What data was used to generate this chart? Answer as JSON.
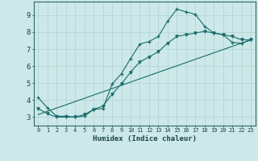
{
  "xlabel": "Humidex (Indice chaleur)",
  "bg_color": "#cce8e8",
  "grid_color": "#b8d8d8",
  "line_color": "#1a6b6b",
  "xlim": [
    -0.5,
    23.5
  ],
  "ylim": [
    2.5,
    9.8
  ],
  "xticks": [
    0,
    1,
    2,
    3,
    4,
    5,
    6,
    7,
    8,
    9,
    10,
    11,
    12,
    13,
    14,
    15,
    16,
    17,
    18,
    19,
    20,
    21,
    22,
    23
  ],
  "yticks": [
    3,
    4,
    5,
    6,
    7,
    8,
    9
  ],
  "line1_x": [
    0,
    1,
    2,
    3,
    4,
    5,
    6,
    7,
    8,
    9,
    10,
    11,
    12,
    13,
    14,
    15,
    16,
    17,
    18,
    19,
    20,
    21,
    22,
    23
  ],
  "line1_y": [
    4.15,
    3.55,
    3.05,
    3.05,
    3.0,
    3.05,
    3.45,
    3.5,
    4.95,
    5.55,
    6.45,
    7.3,
    7.45,
    7.75,
    8.65,
    9.35,
    9.2,
    9.05,
    8.35,
    7.95,
    7.85,
    7.4,
    7.35,
    7.55
  ],
  "line2_x": [
    0,
    1,
    2,
    3,
    4,
    5,
    6,
    7,
    8,
    9,
    10,
    11,
    12,
    13,
    14,
    15,
    16,
    17,
    18,
    19,
    20,
    21,
    22,
    23
  ],
  "line2_y": [
    3.5,
    3.2,
    3.0,
    3.0,
    3.0,
    3.15,
    3.45,
    3.65,
    4.35,
    4.95,
    5.65,
    6.25,
    6.55,
    6.85,
    7.35,
    7.75,
    7.85,
    7.95,
    8.05,
    7.95,
    7.85,
    7.75,
    7.55,
    7.55
  ],
  "line3_x": [
    0,
    23
  ],
  "line3_y": [
    3.15,
    7.55
  ]
}
